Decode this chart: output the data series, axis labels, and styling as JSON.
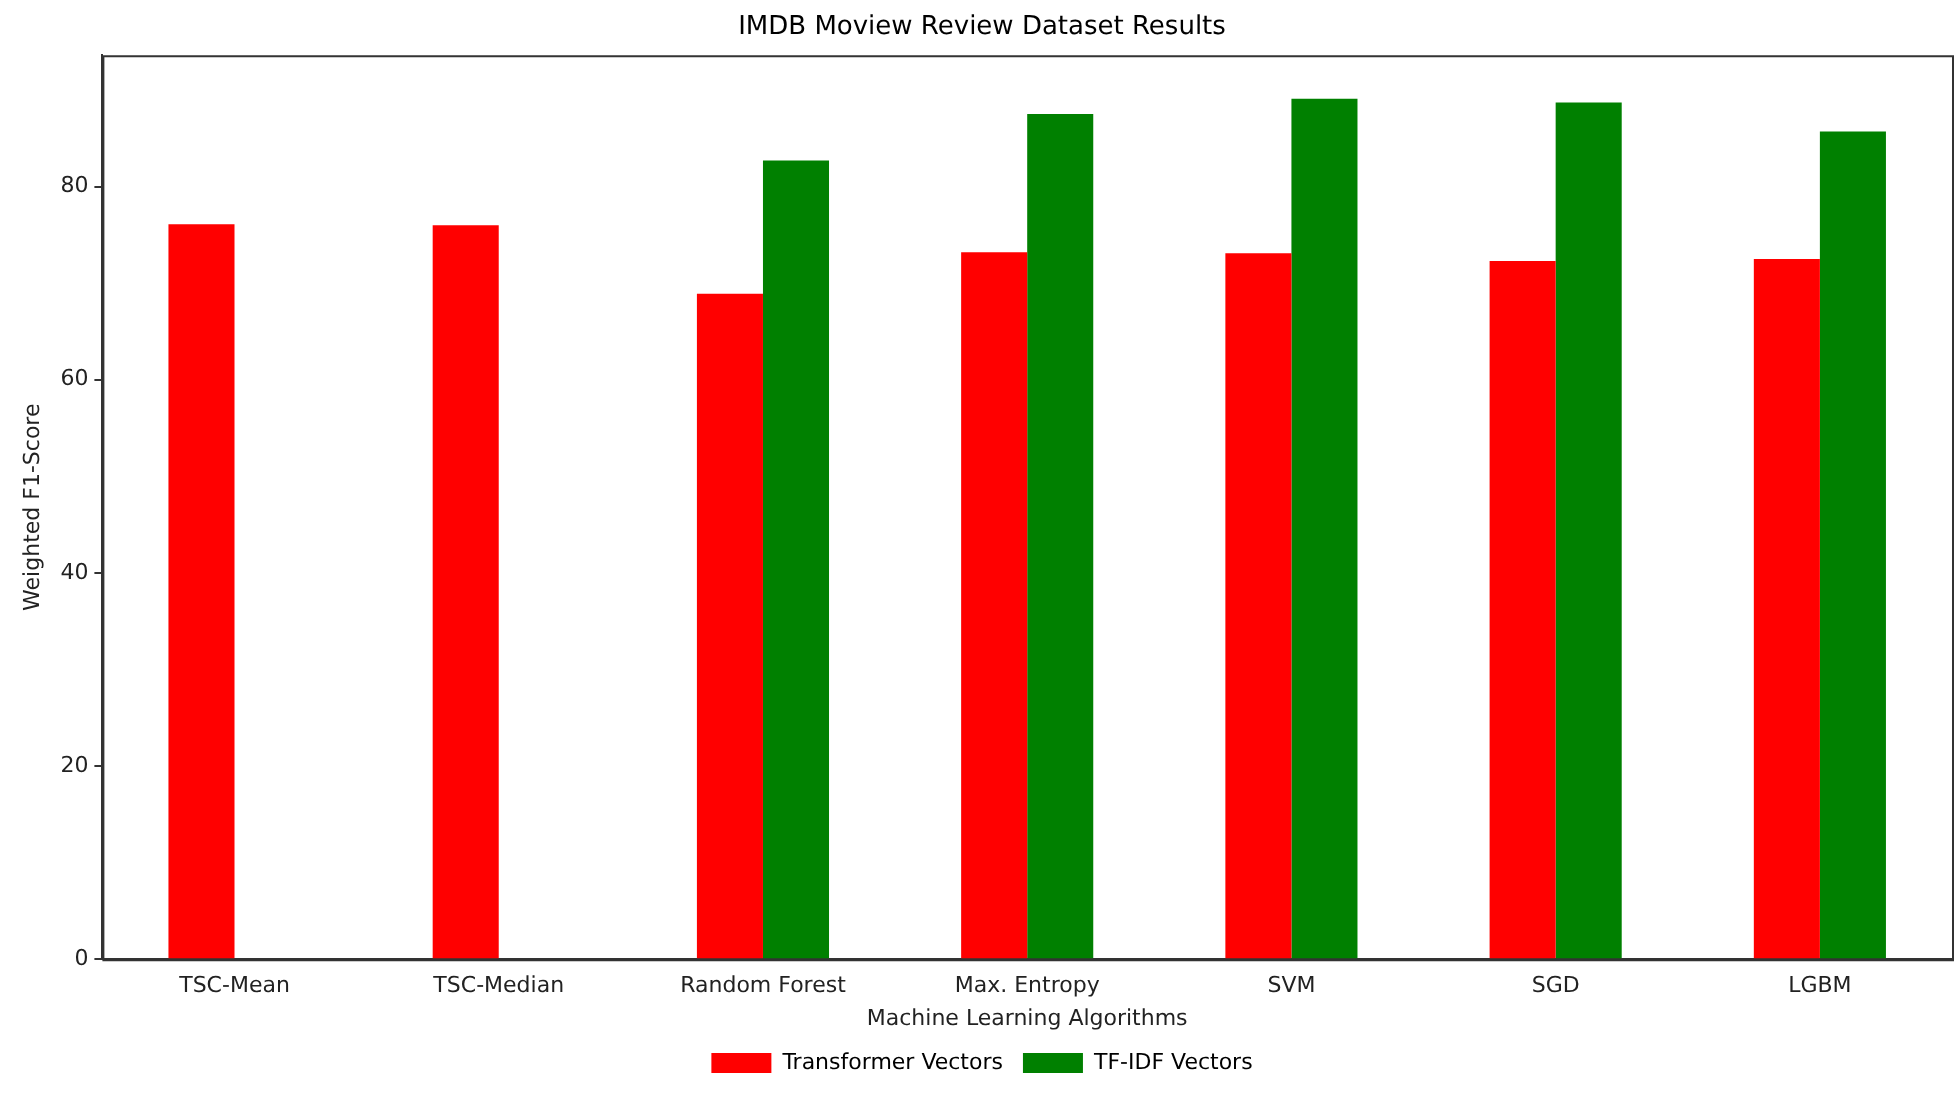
{
  "chart_data": {
    "type": "bar",
    "title": "IMDB Moview Review Dataset Results",
    "xlabel": "Machine Learning Algorithms",
    "ylabel": "Weighted F1-Score",
    "categories": [
      "TSC-Mean",
      "TSC-Median",
      "Random Forest",
      "Max. Entropy",
      "SVM",
      "SGD",
      "LGBM"
    ],
    "series": [
      {
        "name": "Transformer Vectors",
        "color": "#ff0000",
        "values": [
          76.1,
          76.0,
          68.9,
          73.2,
          73.1,
          72.3,
          72.5
        ]
      },
      {
        "name": "TF-IDF Vectors",
        "color": "#008000",
        "values": [
          null,
          null,
          82.7,
          87.5,
          89.1,
          88.7,
          85.7
        ]
      }
    ],
    "ylim": [
      0,
      93.6
    ],
    "yticks": [
      0,
      20,
      40,
      60,
      80
    ],
    "grid": false,
    "legend": "bottom"
  }
}
